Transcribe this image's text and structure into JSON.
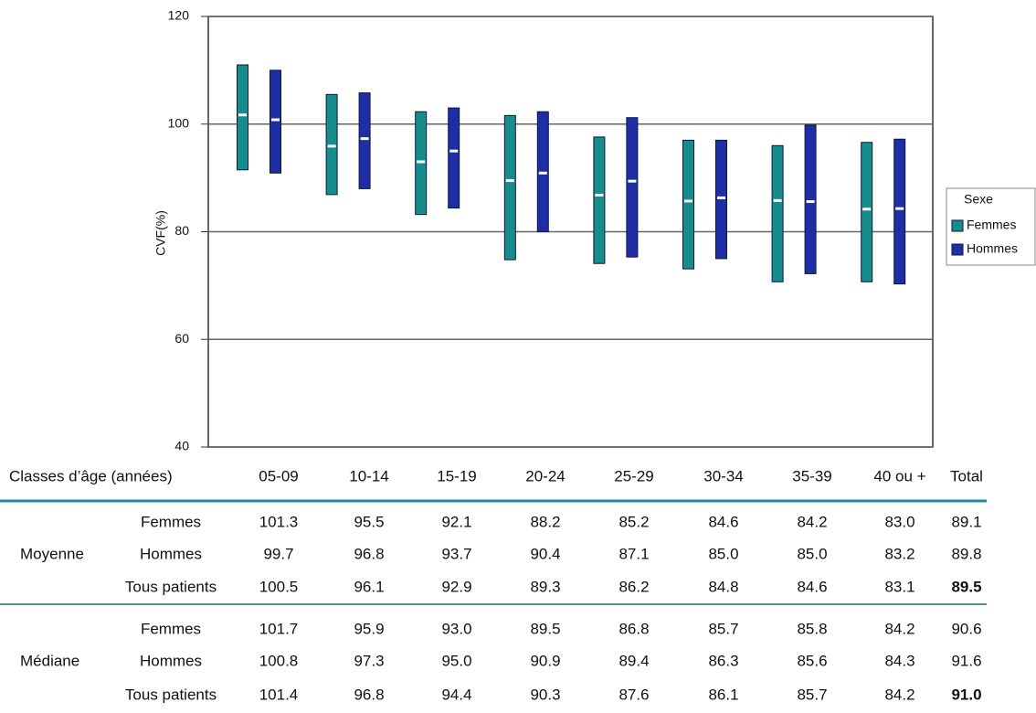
{
  "chart_data": {
    "type": "range-bar",
    "ylabel": "CVF(%)",
    "categories": [
      "05-09",
      "10-14",
      "15-19",
      "20-24",
      "25-29",
      "30-34",
      "35-39",
      "40 ou +"
    ],
    "series": [
      {
        "name": "Femmes",
        "color": "#168c8c",
        "low": [
          91.5,
          86.9,
          83.2,
          74.8,
          74.1,
          73.1,
          70.7,
          70.7
        ],
        "high": [
          111,
          105.5,
          102.3,
          101.6,
          97.6,
          97,
          96,
          96.6
        ],
        "median": [
          101.7,
          95.9,
          93.0,
          89.5,
          86.8,
          85.7,
          85.8,
          84.2
        ]
      },
      {
        "name": "Hommes",
        "color": "#1f2ea5",
        "low": [
          90.9,
          88,
          84.4,
          80,
          75.3,
          75,
          72.2,
          70.3
        ],
        "high": [
          110,
          105.8,
          103,
          102.3,
          101.2,
          97,
          99.8,
          97.2
        ],
        "median": [
          100.8,
          97.3,
          95.0,
          90.9,
          89.4,
          86.3,
          85.6,
          84.3
        ]
      }
    ],
    "ylim": [
      40,
      120
    ],
    "yticks": [
      40,
      60,
      80,
      100,
      120
    ],
    "grid": true,
    "legend_title": "Sexe",
    "legend": "right"
  },
  "table": {
    "header_label": "Classes d’âge (années)",
    "total_label": "Total",
    "groups": [
      {
        "label": "Moyenne",
        "rows": [
          {
            "label": "Femmes",
            "cells": [
              "101.3",
              "95.5",
              "92.1",
              "88.2",
              "85.2",
              "84.6",
              "84.2",
              "83.0",
              "89.1"
            ]
          },
          {
            "label": "Hommes",
            "cells": [
              "99.7",
              "96.8",
              "93.7",
              "90.4",
              "87.1",
              "85.0",
              "85.0",
              "83.2",
              "89.8"
            ]
          },
          {
            "label": "Tous patients",
            "cells": [
              "100.5",
              "96.1",
              "92.9",
              "89.3",
              "86.2",
              "84.8",
              "84.6",
              "83.1",
              "89.5"
            ]
          }
        ]
      },
      {
        "label": "Médiane",
        "rows": [
          {
            "label": "Femmes",
            "cells": [
              "101.7",
              "95.9",
              "93.0",
              "89.5",
              "86.8",
              "85.7",
              "85.8",
              "84.2",
              "90.6"
            ]
          },
          {
            "label": "Hommes",
            "cells": [
              "100.8",
              "97.3",
              "95.0",
              "90.9",
              "89.4",
              "86.3",
              "85.6",
              "84.3",
              "91.6"
            ]
          },
          {
            "label": "Tous patients",
            "cells": [
              "101.4",
              "96.8",
              "94.4",
              "90.3",
              "87.6",
              "86.1",
              "85.7",
              "84.2",
              "91.0"
            ]
          }
        ]
      }
    ]
  }
}
